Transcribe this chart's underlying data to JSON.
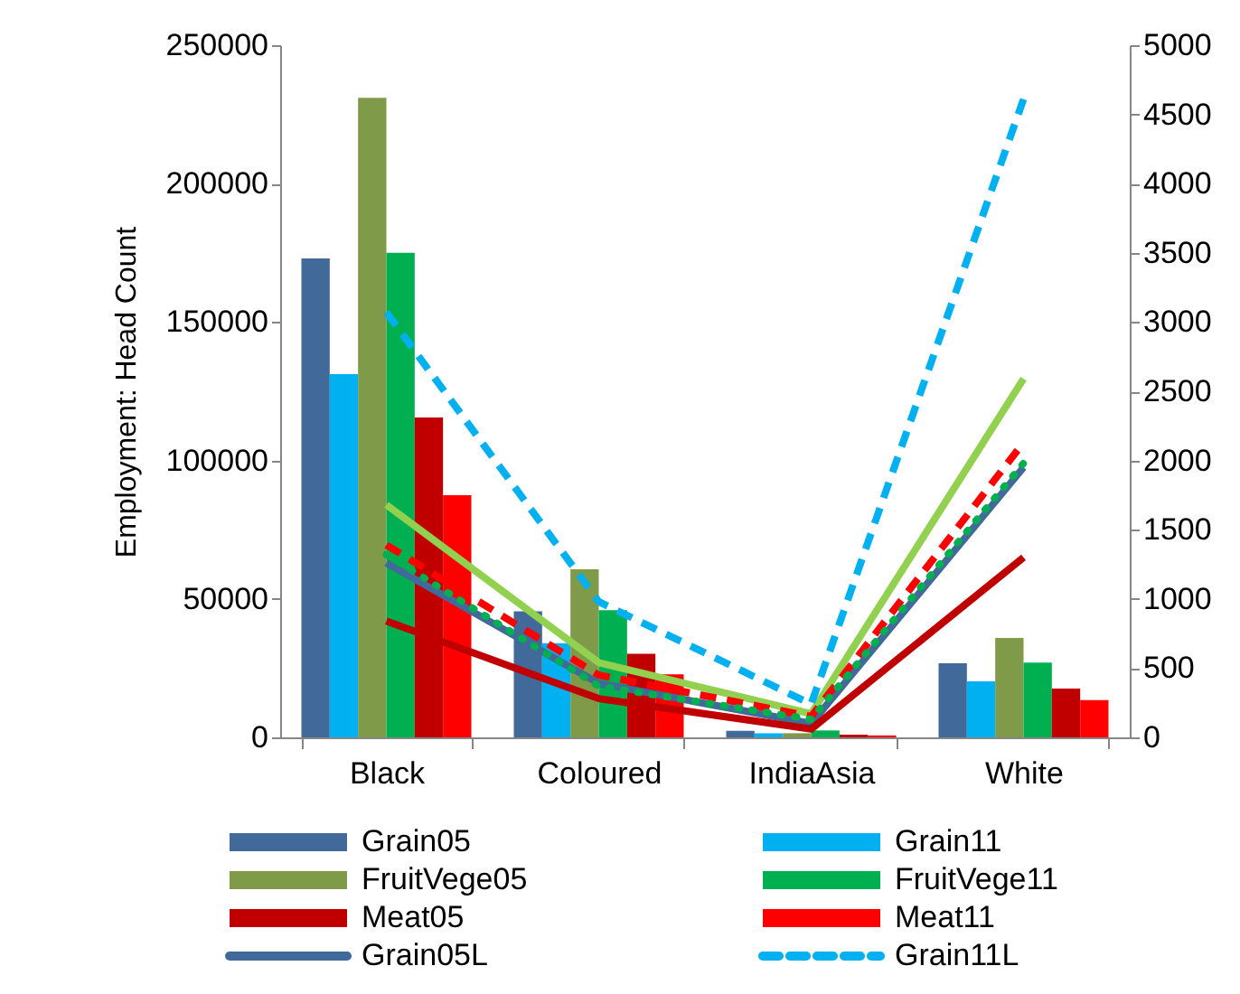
{
  "chart_data": {
    "type": "bar",
    "ylabel": "Employment: Head Count",
    "categories": [
      "Black",
      "Coloured",
      "IndiaAsia",
      "White"
    ],
    "ylim": [
      0,
      250000
    ],
    "yticks": [
      0,
      50000,
      100000,
      150000,
      200000,
      250000
    ],
    "y2lim": [
      0,
      5000
    ],
    "y2ticks": [
      0,
      500,
      1000,
      1500,
      2000,
      2500,
      3000,
      3500,
      4000,
      4500,
      5000
    ],
    "grid": false,
    "legend": "bottom",
    "series": [
      {
        "name": "Grain05",
        "color": "#41699a",
        "values": [
          173000,
          45500,
          2400,
          26800
        ]
      },
      {
        "name": "Grain11",
        "color": "#00b0f0",
        "values": [
          131200,
          34000,
          1500,
          20200
        ]
      },
      {
        "name": "FruitVege05",
        "color": "#7f9a48",
        "values": [
          231000,
          60700,
          1500,
          35900
        ]
      },
      {
        "name": "FruitVege11",
        "color": "#00b050",
        "values": [
          175000,
          45900,
          2500,
          27000
        ]
      },
      {
        "name": "Meat05",
        "color": "#c00000",
        "values": [
          115500,
          30200,
          1000,
          17600
        ]
      },
      {
        "name": "Meat11",
        "color": "#ff0000",
        "values": [
          87500,
          22800,
          700,
          13500
        ]
      },
      {
        "name": "Grain05L",
        "type": "line",
        "axis": "y2",
        "line_style": "solid",
        "color": "#41699a",
        "values": [
          1260,
          390,
          100,
          1950
        ]
      },
      {
        "name": "Grain11L",
        "type": "line",
        "axis": "y2",
        "line_style": "dashed",
        "color": "#00b0f0",
        "values": [
          3070,
          980,
          240,
          4610
        ]
      },
      {
        "type": "line",
        "axis": "y2",
        "line_style": "solid",
        "color": "#92d050",
        "values": [
          1680,
          540,
          170,
          2590
        ]
      },
      {
        "type": "line",
        "axis": "y2",
        "line_style": "dotted",
        "color": "#00b050",
        "values": [
          1320,
          370,
          130,
          1980
        ]
      },
      {
        "type": "line",
        "axis": "y2",
        "line_style": "solid",
        "color": "#c00000",
        "values": [
          840,
          280,
          60,
          1300
        ]
      },
      {
        "type": "line",
        "axis": "y2",
        "line_style": "dashed",
        "color": "#ff0000",
        "values": [
          1390,
          450,
          150,
          2130
        ]
      }
    ]
  }
}
